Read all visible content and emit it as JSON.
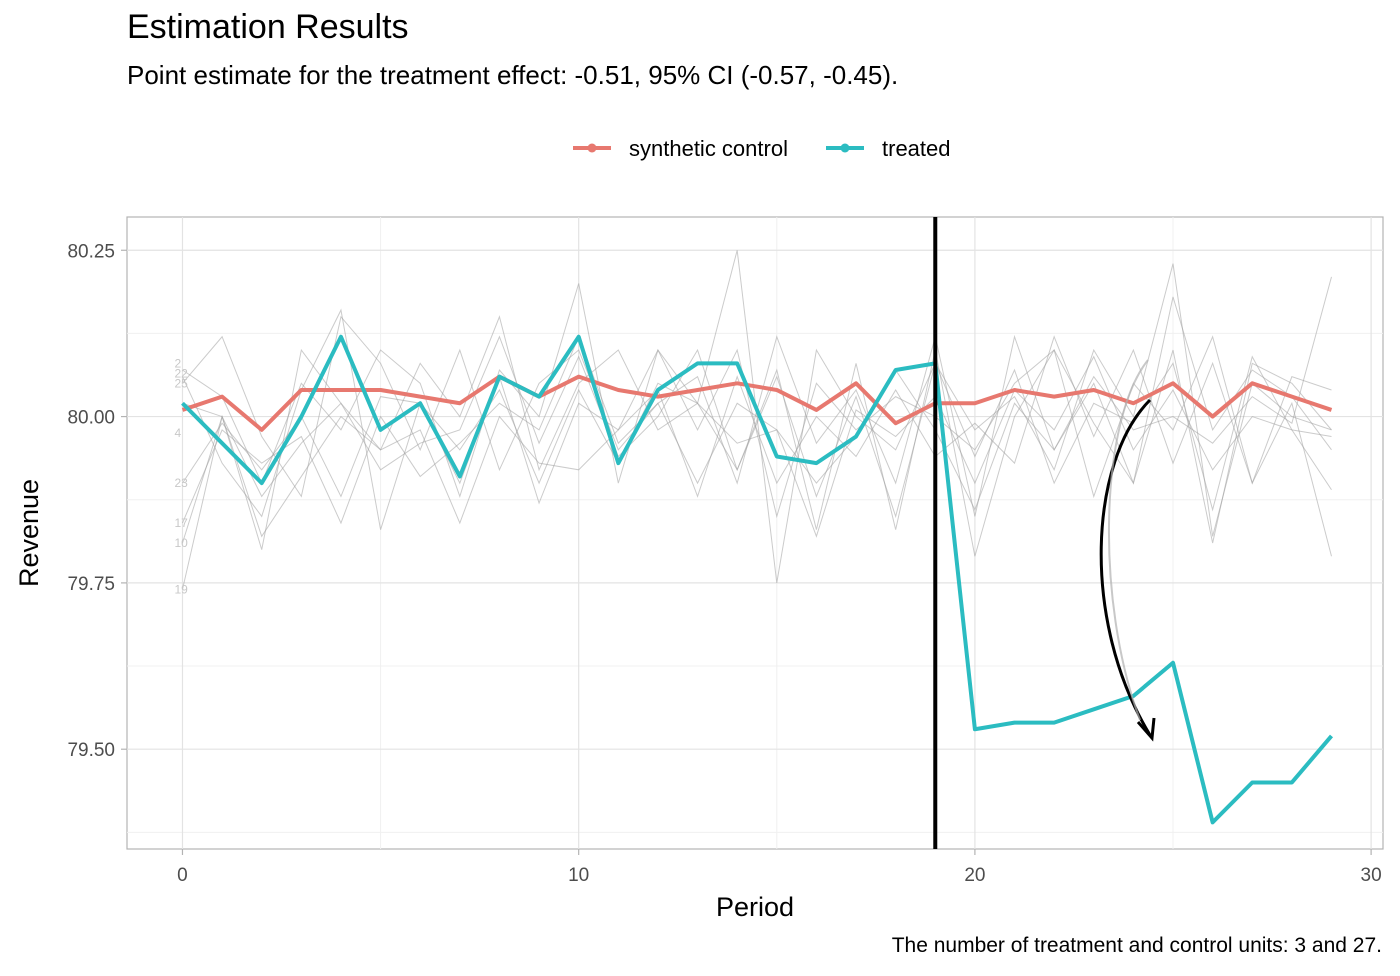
{
  "title": "Estimation Results",
  "subtitle": "Point estimate for the treatment effect: -0.51, 95% CI (-0.57, -0.45).",
  "caption": "The number of treatment and control units: 3 and 27.",
  "chart_data": {
    "type": "line",
    "xlabel": "Period",
    "ylabel": "Revenue",
    "xlim": [
      -1.4,
      30.3
    ],
    "ylim": [
      79.35,
      80.3
    ],
    "x_ticks": [
      0,
      10,
      20,
      30
    ],
    "x_tick_labels": [
      "0",
      "10",
      "20",
      "30"
    ],
    "y_ticks": [
      79.5,
      79.75,
      80.0,
      80.25
    ],
    "y_tick_labels": [
      "79.50",
      "79.75",
      "80.00",
      "80.25"
    ],
    "grid": true,
    "legend_position": "top",
    "intervention_period": 19,
    "x": [
      0,
      1,
      2,
      3,
      4,
      5,
      6,
      7,
      8,
      9,
      10,
      11,
      12,
      13,
      14,
      15,
      16,
      17,
      18,
      19,
      20,
      21,
      22,
      23,
      24,
      25,
      26,
      27,
      28,
      29
    ],
    "series": [
      {
        "name": "synthetic control",
        "color": "#E7786F",
        "values": [
          80.01,
          80.03,
          79.98,
          80.04,
          80.04,
          80.04,
          80.03,
          80.02,
          80.06,
          80.03,
          80.06,
          80.04,
          80.03,
          80.04,
          80.05,
          80.04,
          80.01,
          80.05,
          79.99,
          80.02,
          80.02,
          80.04,
          80.03,
          80.04,
          80.02,
          80.05,
          80.0,
          80.05,
          80.03,
          80.01
        ]
      },
      {
        "name": "treated",
        "color": "#2BBCC1",
        "values": [
          80.02,
          79.96,
          79.9,
          80.0,
          80.12,
          79.98,
          80.02,
          79.91,
          80.06,
          80.03,
          80.12,
          79.93,
          80.04,
          80.08,
          80.08,
          79.94,
          79.93,
          79.97,
          80.07,
          80.08,
          79.53,
          79.54,
          79.54,
          79.56,
          79.58,
          79.63,
          79.39,
          79.45,
          79.45,
          79.52
        ]
      }
    ],
    "control_units": [
      {
        "label": "",
        "values": [
          80.05,
          80.12,
          79.97,
          79.88,
          80.15,
          80.08,
          79.95,
          80.1,
          79.92,
          80.05,
          80.1,
          79.95,
          80.02,
          80.06,
          79.9,
          80.12,
          79.96,
          80.04,
          79.9,
          80.12,
          79.85,
          80.12,
          79.95,
          80.05,
          79.9,
          80.18,
          79.98,
          80.07,
          80.03,
          79.95
        ]
      },
      {
        "label": "",
        "values": [
          80.07,
          80.03,
          79.9,
          80.05,
          79.98,
          80.1,
          80.05,
          79.88,
          80.07,
          80.0,
          80.2,
          79.9,
          80.1,
          79.98,
          80.1,
          79.85,
          80.05,
          79.98,
          80.03,
          80.0,
          79.95,
          80.05,
          80.1,
          79.88,
          80.05,
          79.98,
          80.12,
          79.9,
          80.06,
          80.04
        ]
      },
      {
        "label": "",
        "values": [
          80.02,
          80.0,
          79.8,
          80.1,
          80.02,
          79.95,
          80.08,
          80.0,
          80.15,
          79.92,
          80.05,
          80.1,
          79.98,
          80.02,
          80.25,
          79.75,
          80.1,
          80.0,
          79.95,
          80.08,
          79.98,
          80.03,
          79.92,
          80.1,
          80.0,
          80.23,
          79.82,
          80.05,
          80.0,
          79.98
        ]
      },
      {
        "label": "",
        "values": [
          80.06,
          79.93,
          79.85,
          80.04,
          80.16,
          79.83,
          80.02,
          79.9,
          80.06,
          79.87,
          80.02,
          79.98,
          80.1,
          80.02,
          79.92,
          80.07,
          79.83,
          80.08,
          79.83,
          80.1,
          79.79,
          80.0,
          80.1,
          79.99,
          79.9,
          80.1,
          79.81,
          80.08,
          80.05,
          79.98
        ]
      },
      {
        "label": "23",
        "values": [
          79.9,
          79.99,
          79.92,
          80.0,
          79.88,
          80.03,
          80.02,
          79.95,
          80.04,
          79.9,
          80.04,
          79.93,
          80.05,
          80.02,
          79.96,
          79.98,
          79.9,
          79.97,
          80.07,
          79.98,
          79.86,
          80.02,
          79.95,
          80.06,
          79.98,
          80.0,
          79.96,
          80.03,
          79.99,
          80.21
        ]
      },
      {
        "label": "17",
        "values": [
          79.84,
          79.98,
          79.93,
          79.97,
          79.84,
          80.0,
          79.91,
          79.96,
          80.02,
          79.98,
          80.12,
          79.96,
          80.02,
          79.9,
          80.02,
          79.98,
          79.82,
          80.01,
          79.97,
          80.03,
          79.9,
          80.04,
          79.98,
          80.09,
          79.95,
          80.04,
          79.92,
          80.0,
          79.98,
          79.97
        ]
      },
      {
        "label": "10",
        "values": [
          79.81,
          80.0,
          79.82,
          79.91,
          80.0,
          79.95,
          79.98,
          79.84,
          80.0,
          79.93,
          79.92,
          79.98,
          80.04,
          79.88,
          80.06,
          79.9,
          80.0,
          79.94,
          80.04,
          79.94,
          79.99,
          79.93,
          80.12,
          79.97,
          80.1,
          79.93,
          80.08,
          79.9,
          80.02,
          79.79
        ]
      },
      {
        "label": "19",
        "values": [
          79.74,
          80.0,
          79.88,
          79.96,
          80.02,
          79.92,
          79.96,
          79.98,
          80.12,
          79.96,
          80.09,
          79.94,
          80.0,
          80.1,
          79.92,
          80.06,
          79.88,
          80.03,
          79.85,
          80.08,
          79.94,
          80.07,
          79.9,
          80.02,
          79.99,
          80.08,
          79.86,
          80.09,
          79.98,
          79.89
        ]
      }
    ],
    "ctrl_extra_labels": [
      "2",
      "22",
      "25",
      "4"
    ]
  }
}
